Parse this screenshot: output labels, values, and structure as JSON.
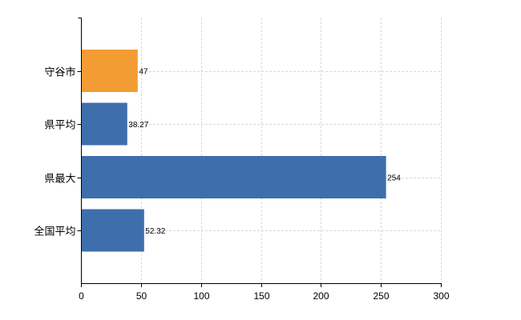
{
  "chart_data": {
    "type": "bar",
    "orientation": "horizontal",
    "categories": [
      "守谷市",
      "県平均",
      "県最大",
      "全国平均"
    ],
    "values": [
      47,
      38.27,
      254,
      52.32
    ],
    "data_labels": [
      "47",
      "38.27",
      "254",
      "52.32"
    ],
    "bar_colors": [
      "#f39c34",
      "#3f6ead",
      "#3f6ead",
      "#3f6ead"
    ],
    "xlim": [
      0,
      300
    ],
    "x_ticks": [
      0,
      50,
      100,
      150,
      200,
      250,
      300
    ],
    "x_tick_labels": [
      "0",
      "50",
      "100",
      "150",
      "200",
      "250",
      "300"
    ],
    "grid": true,
    "legend": false
  }
}
